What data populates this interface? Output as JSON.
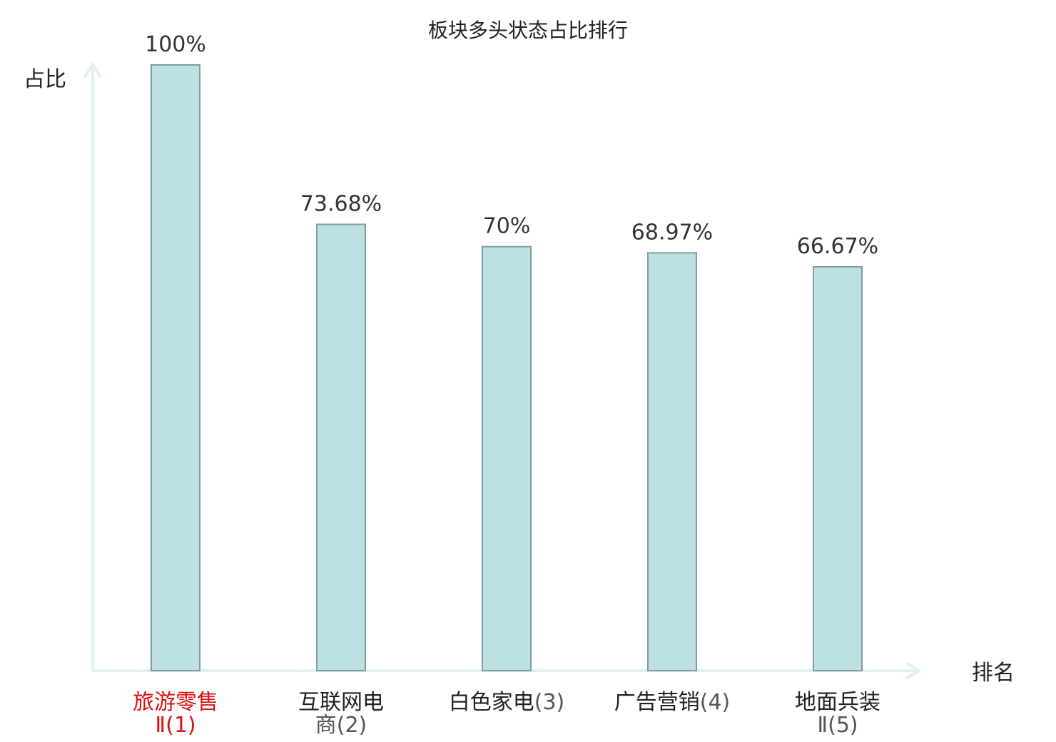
{
  "chart_data": {
    "type": "bar",
    "title": "板块多头状态占比排行",
    "xlabel": "排名",
    "ylabel": "占比",
    "ylim": [
      0,
      100
    ],
    "grid": false,
    "categories": [
      {
        "name": "旅游零售",
        "suffix": "Ⅱ(1)",
        "highlight": true
      },
      {
        "name": "互联网电",
        "suffix": "商(2)",
        "highlight": false
      },
      {
        "name": "白色家电",
        "suffix": "(3)",
        "highlight": false
      },
      {
        "name": "广告营销",
        "suffix": "(4)",
        "highlight": false
      },
      {
        "name": "地面兵装",
        "suffix": "Ⅱ(5)",
        "highlight": false
      }
    ],
    "values": [
      100,
      73.68,
      70,
      68.97,
      66.67
    ],
    "value_labels": [
      "100%",
      "73.68%",
      "70%",
      "68.97%",
      "66.67%"
    ],
    "colors": {
      "bar_fill": "#bde0e2",
      "bar_stroke": "#7f9d9f",
      "axis": "#e0f2ef",
      "highlight_text": "#dd1111",
      "normal_text": "#222222",
      "suffix_text": "#555555"
    }
  }
}
